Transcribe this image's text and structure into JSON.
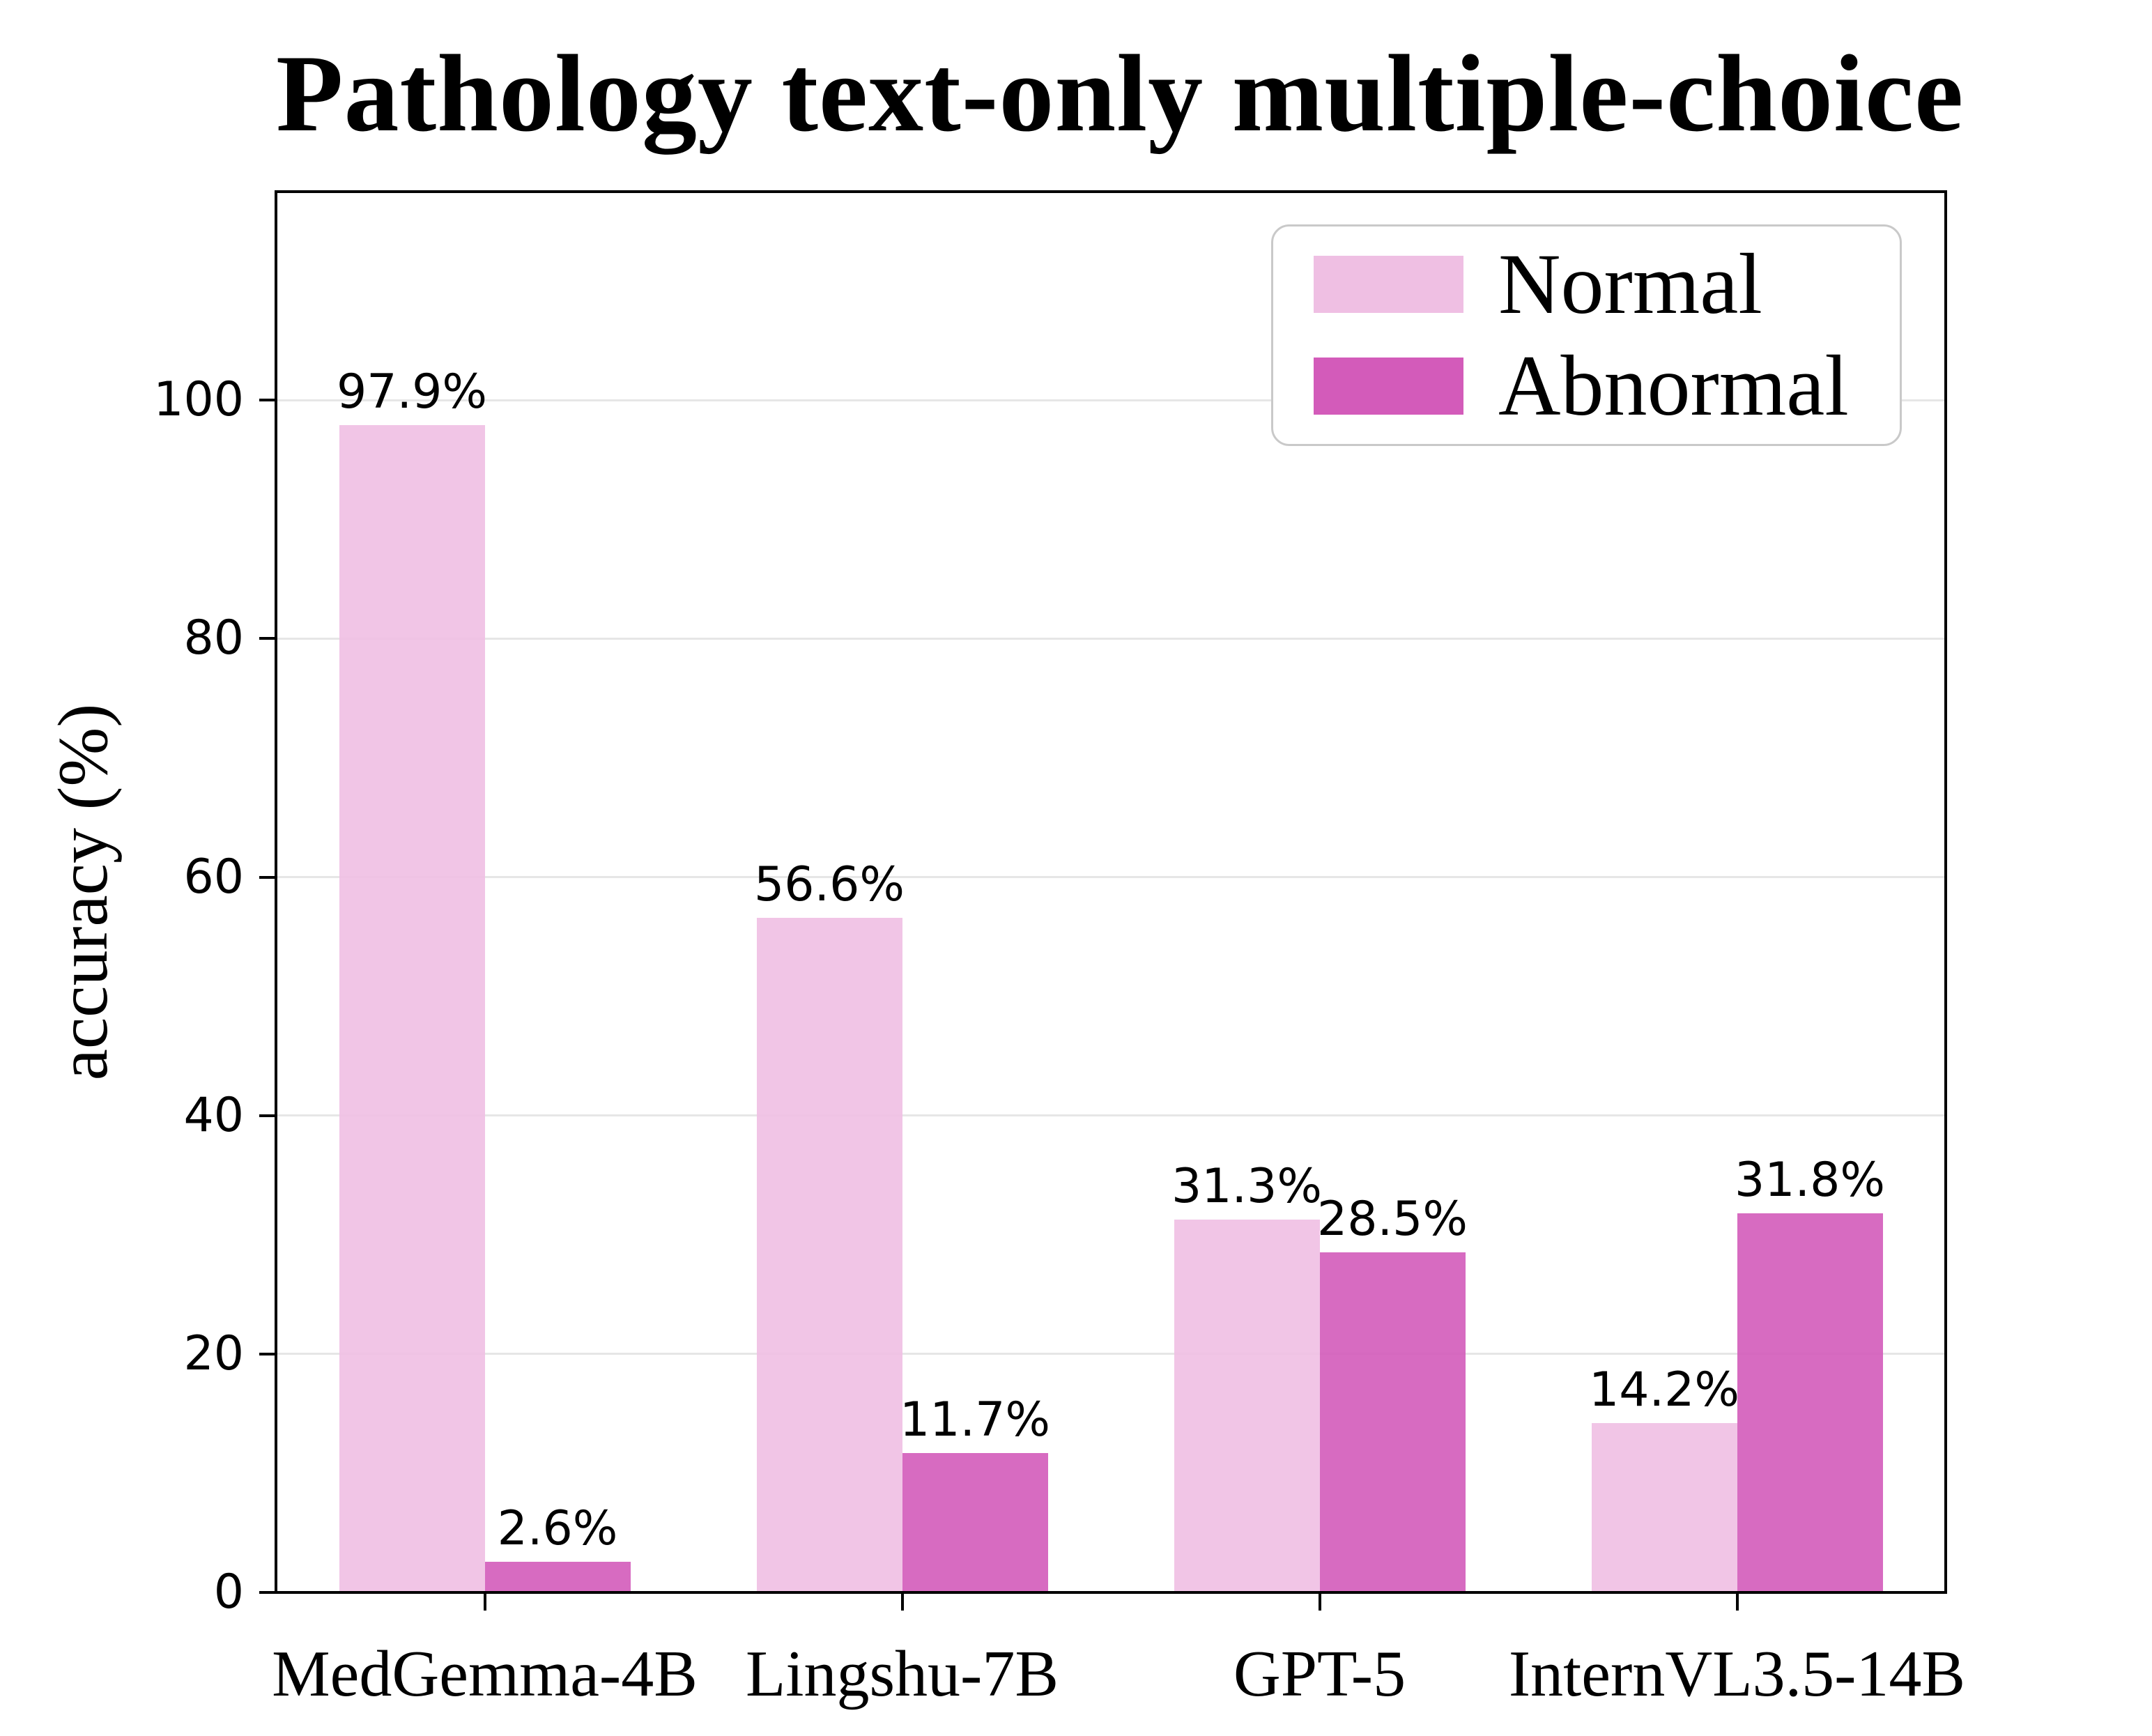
{
  "chart_data": {
    "type": "bar",
    "title": "Pathology text-only multiple-choice",
    "ylabel": "accuracy (%)",
    "categories": [
      "MedGemma-4B",
      "Lingshu-7B",
      "GPT-5",
      "InternVL3.5-14B"
    ],
    "series": [
      {
        "name": "Normal",
        "color": "#EFBFE3",
        "values": [
          97.9,
          56.6,
          31.3,
          14.2
        ],
        "labels": [
          "97.9%",
          "56.6%",
          "31.3%",
          "14.2%"
        ]
      },
      {
        "name": "Abnormal",
        "color": "#D35BBA",
        "values": [
          2.6,
          11.7,
          28.5,
          31.8
        ],
        "labels": [
          "2.6%",
          "11.7%",
          "28.5%",
          "31.8%"
        ]
      }
    ],
    "bar_alpha": 0.9,
    "yticks": [
      0,
      20,
      40,
      60,
      80,
      100
    ],
    "ylim": [
      0,
      117.5
    ],
    "grid": "horizontal",
    "grid_color": "#E6E6E6",
    "axis_color": "#000000",
    "legend_position": "upper right"
  }
}
